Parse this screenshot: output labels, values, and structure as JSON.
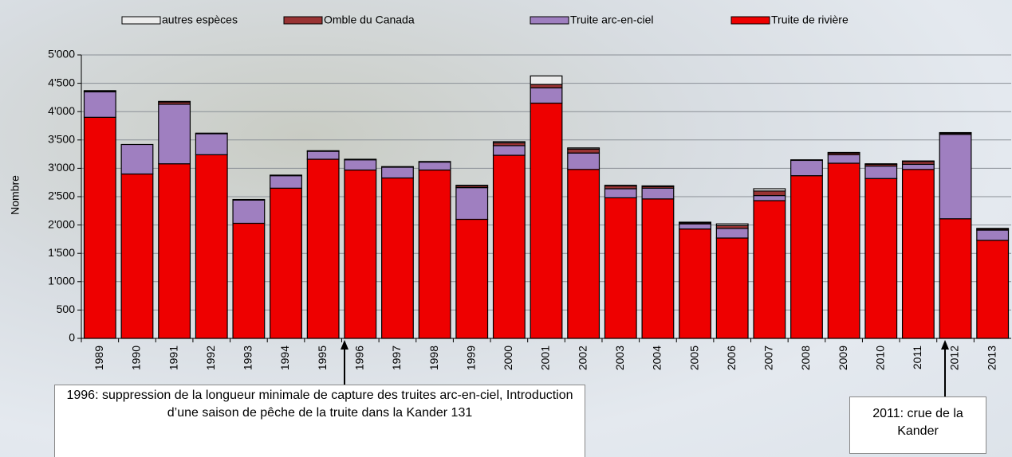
{
  "chart_data": {
    "type": "stacked-bar",
    "y_label": "Nombre",
    "categories": [
      "1989",
      "1990",
      "1991",
      "1992",
      "1993",
      "1994",
      "1995",
      "1996",
      "1997",
      "1998",
      "1999",
      "2000",
      "2001",
      "2002",
      "2003",
      "2004",
      "2005",
      "2006",
      "2007",
      "2008",
      "2009",
      "2010",
      "2011",
      "2012",
      "2013"
    ],
    "series": [
      {
        "name": "autres espèces",
        "color": "#ececec",
        "values": [
          10,
          0,
          10,
          0,
          0,
          0,
          0,
          0,
          0,
          0,
          10,
          20,
          150,
          20,
          10,
          10,
          10,
          30,
          40,
          0,
          10,
          10,
          10,
          10,
          10
        ]
      },
      {
        "name": "Omble du Canada",
        "color": "#993333",
        "values": [
          10,
          0,
          40,
          10,
          10,
          10,
          10,
          10,
          10,
          10,
          30,
          50,
          60,
          70,
          50,
          30,
          20,
          50,
          80,
          10,
          30,
          30,
          50,
          20,
          20
        ]
      },
      {
        "name": "Truite arc-en-ciel",
        "color": "#9f7fc0",
        "values": [
          450,
          520,
          1050,
          370,
          410,
          220,
          140,
          180,
          190,
          140,
          560,
          170,
          270,
          290,
          160,
          190,
          90,
          170,
          90,
          270,
          150,
          220,
          90,
          1490,
          180
        ]
      },
      {
        "name": "Truite de rivière",
        "color": "#ee0000",
        "values": [
          3900,
          2900,
          3080,
          3240,
          2030,
          2650,
          3160,
          2970,
          2830,
          2970,
          2100,
          3230,
          4150,
          2980,
          2480,
          2460,
          1930,
          1770,
          2430,
          2870,
          3090,
          2820,
          2980,
          2110,
          1730
        ]
      }
    ],
    "ylim": [
      0,
      5000
    ],
    "yticks": [
      0,
      500,
      {
        "value": 1000,
        "label": "1'000"
      },
      {
        "value": 1500,
        "label": "1'500"
      },
      {
        "value": 2000,
        "label": "2'000"
      },
      {
        "value": 2500,
        "label": "2'500"
      },
      {
        "value": 3000,
        "label": "3'000"
      },
      {
        "value": 3500,
        "label": "3'500"
      },
      {
        "value": 4000,
        "label": "4'000"
      },
      {
        "value": 4500,
        "label": "4'500"
      },
      {
        "value": 5000,
        "label": "5'000"
      }
    ],
    "grid": true,
    "legend": "top",
    "annotations": [
      "1996: suppression de la longueur minimale de capture des truites arc-en-ciel, Introduction d’une saison de pêche de la truite dans la Kander 131",
      "2011: crue de la Kander"
    ]
  }
}
